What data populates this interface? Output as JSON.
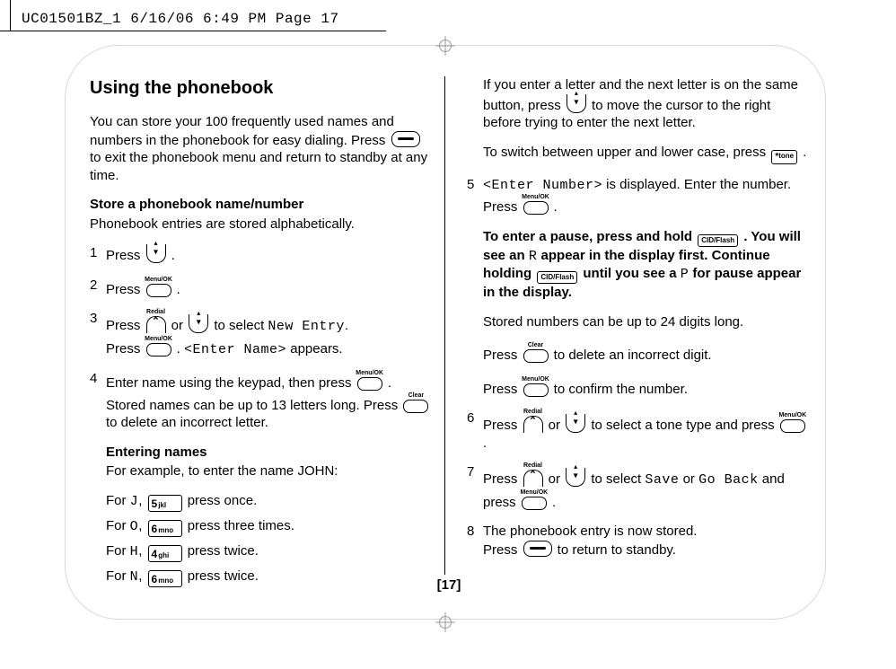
{
  "crop_header": "UC01501BZ_1  6/16/06  6:49 PM  Page 17",
  "page_number": "[17]",
  "left": {
    "title": "Using the phonebook",
    "intro_a": "You can store your 100 frequently used names and numbers in the phonebook for easy dialing. Press ",
    "intro_b": " to exit the phonebook menu and return to standby at any time.",
    "store_heading": "Store a phonebook name/number",
    "store_sub": "Phonebook entries are stored alphabetically.",
    "s1": "Press ",
    "s2": "Press ",
    "s3a": "Press ",
    "s3_or": " or ",
    "s3b": " to select ",
    "s3_newentry": "New Entry",
    "s3_dot": ".",
    "s3c": "Press ",
    "s3d": " . ",
    "s3_entername": "<Enter Name>",
    "s3e": " appears.",
    "s4a": "Enter name using the keypad, then press ",
    "s4b": " . Stored names can be up to 13 letters long. Press ",
    "s4c": " to delete an incorrect letter.",
    "entering_heading": "Entering names",
    "entering_example": "For example, to enter the name JOHN:",
    "exJ_a": "For ",
    "exJ_letter": "J",
    "exJ_b": ",  ",
    "exJ_c": " press once.",
    "exO_letter": "O",
    "exO_c": " press three times.",
    "exH_letter": "H",
    "exH_c": " press twice.",
    "exN_letter": "N",
    "exN_c": " press twice."
  },
  "right": {
    "para1a": "If you enter a letter and the next letter is on the same button, press ",
    "para1b": " to move the cursor to the right before trying to enter the next letter.",
    "para2a": "To switch between upper and lower case, press ",
    "para2b": " .",
    "s5a": "<Enter Number>",
    "s5b": " is displayed. Enter the number. Press ",
    "s5c": " .",
    "pause_a": "To enter a pause, press and hold ",
    "pause_b": " . You will see an ",
    "pause_R": "R",
    "pause_c": " appear in the display first. Continue holding ",
    "pause_d": " until you see a ",
    "pause_P": "P",
    "pause_e": " for pause appear in the display.",
    "stored24": "Stored numbers can be up to 24 digits long.",
    "del_a": "Press ",
    "del_b": " to delete an incorrect digit.",
    "conf_a": "Press ",
    "conf_b": " to confirm the number.",
    "s6a": "Press ",
    "s6_or": " or ",
    "s6b": " to select a tone type and press ",
    "s6c": " .",
    "s7a": "Press ",
    "s7_or": " or ",
    "s7b": " to select ",
    "s7_save": "Save",
    "s7_or2": " or ",
    "s7_back": "Go Back",
    "s7c": " and press ",
    "s7d": " .",
    "s8a": "The phonebook entry is now stored.",
    "s8b": "Press ",
    "s8c": " to return to standby."
  },
  "labels": {
    "menuok": "Menu/OK",
    "redial": "Redial",
    "clear": "Clear",
    "cidflash": "CID/Flash",
    "tone": "tone"
  },
  "keys": {
    "k5d": "5",
    "k5l": "jkl",
    "k6d": "6",
    "k6l": "mno",
    "k4d": "4",
    "k4l": "ghi"
  }
}
